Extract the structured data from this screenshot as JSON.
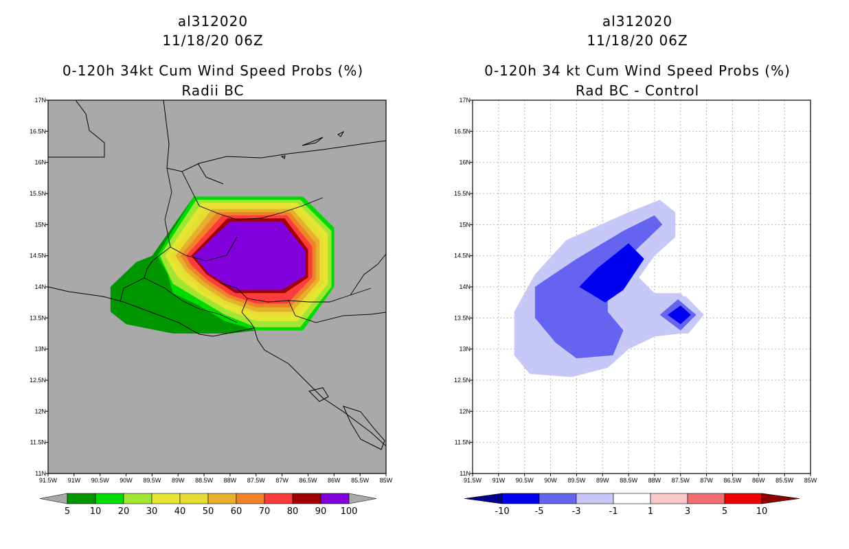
{
  "panels": [
    {
      "id": "left",
      "storm": "al312020",
      "datetime": "11/18/20 06Z",
      "title": "0-120h 34kt Cum Wind Speed Probs (%)",
      "subtitle": "Radii BC",
      "background": "#a9a9a9",
      "dotted_grid": false
    },
    {
      "id": "right",
      "storm": "al312020",
      "datetime": "11/18/20 06Z",
      "title": "0-120h 34 kt Cum Wind Speed Probs (%)",
      "subtitle": "Rad BC - Control",
      "background": "#ffffff",
      "dotted_grid": true
    }
  ],
  "chart_data": [
    {
      "type": "filled-contour-map",
      "panel": "left",
      "lon_range": [
        -91.5,
        -85.0
      ],
      "lat_range": [
        11.0,
        17.0
      ],
      "x_tick_labels": [
        "91.5W",
        "91W",
        "90.5W",
        "90W",
        "89.5W",
        "89W",
        "88.5W",
        "88W",
        "87.5W",
        "87W",
        "86.5W",
        "86W",
        "85.5W",
        "85W"
      ],
      "y_tick_labels": [
        "11N",
        "11.5N",
        "12N",
        "12.5N",
        "13N",
        "13.5N",
        "14N",
        "14.5N",
        "15N",
        "15.5N",
        "16N",
        "16.5N",
        "17N"
      ],
      "colorbar": {
        "labels": [
          "5",
          "10",
          "20",
          "30",
          "40",
          "50",
          "60",
          "70",
          "80",
          "90",
          "100"
        ],
        "colors": [
          "#009600",
          "#00dc00",
          "#a0e632",
          "#e6e632",
          "#e6dc32",
          "#e6af2d",
          "#f08228",
          "#fa3c3c",
          "#a00000",
          "#8200dc"
        ]
      },
      "contours": [
        {
          "level": 5,
          "color": "#009600",
          "polygon": [
            [
              -88.7,
              15.45
            ],
            [
              -86.6,
              15.45
            ],
            [
              -86.0,
              14.95
            ],
            [
              -86.0,
              14.0
            ],
            [
              -86.6,
              13.3
            ],
            [
              -87.5,
              13.3
            ],
            [
              -88.0,
              13.25
            ],
            [
              -89.1,
              13.25
            ],
            [
              -90.0,
              13.4
            ],
            [
              -90.3,
              13.6
            ],
            [
              -90.3,
              14.0
            ],
            [
              -89.8,
              14.4
            ],
            [
              -89.5,
              14.5
            ]
          ]
        },
        {
          "level": 10,
          "color": "#00dc00",
          "polygon": [
            [
              -88.7,
              15.45
            ],
            [
              -86.6,
              15.45
            ],
            [
              -86.0,
              14.95
            ],
            [
              -86.0,
              14.0
            ],
            [
              -86.6,
              13.3
            ],
            [
              -87.5,
              13.3
            ],
            [
              -88.1,
              13.45
            ],
            [
              -88.6,
              13.7
            ],
            [
              -89.1,
              13.9
            ],
            [
              -89.2,
              14.2
            ],
            [
              -89.4,
              14.5
            ]
          ]
        },
        {
          "level": 20,
          "color": "#a0e632",
          "polygon": [
            [
              -88.65,
              15.4
            ],
            [
              -86.65,
              15.4
            ],
            [
              -86.05,
              14.9
            ],
            [
              -86.05,
              14.0
            ],
            [
              -86.65,
              13.35
            ],
            [
              -87.5,
              13.35
            ],
            [
              -88.1,
              13.55
            ],
            [
              -88.6,
              13.8
            ],
            [
              -89.1,
              14.05
            ],
            [
              -89.35,
              14.5
            ]
          ]
        },
        {
          "level": 30,
          "color": "#e6e632",
          "polygon": [
            [
              -88.55,
              15.35
            ],
            [
              -86.7,
              15.35
            ],
            [
              -86.12,
              14.85
            ],
            [
              -86.12,
              14.05
            ],
            [
              -86.7,
              13.45
            ],
            [
              -87.5,
              13.45
            ],
            [
              -88.1,
              13.65
            ],
            [
              -88.6,
              13.9
            ],
            [
              -89.0,
              14.15
            ],
            [
              -89.25,
              14.5
            ]
          ]
        },
        {
          "level": 40,
          "color": "#e6dc32",
          "polygon": [
            [
              -88.45,
              15.3
            ],
            [
              -86.75,
              15.3
            ],
            [
              -86.2,
              14.8
            ],
            [
              -86.2,
              14.08
            ],
            [
              -86.75,
              13.55
            ],
            [
              -87.5,
              13.55
            ],
            [
              -88.1,
              13.72
            ],
            [
              -88.6,
              13.97
            ],
            [
              -88.9,
              14.2
            ],
            [
              -89.15,
              14.5
            ]
          ]
        },
        {
          "level": 50,
          "color": "#e6af2d",
          "polygon": [
            [
              -88.35,
              15.25
            ],
            [
              -86.8,
              15.25
            ],
            [
              -86.28,
              14.75
            ],
            [
              -86.28,
              14.1
            ],
            [
              -86.8,
              13.6
            ],
            [
              -87.5,
              13.6
            ],
            [
              -88.1,
              13.78
            ],
            [
              -88.55,
              14.03
            ],
            [
              -88.85,
              14.25
            ],
            [
              -89.05,
              14.5
            ]
          ]
        },
        {
          "level": 60,
          "color": "#f08228",
          "polygon": [
            [
              -88.25,
              15.2
            ],
            [
              -86.85,
              15.2
            ],
            [
              -86.35,
              14.7
            ],
            [
              -86.35,
              14.12
            ],
            [
              -86.85,
              13.67
            ],
            [
              -87.5,
              13.67
            ],
            [
              -88.05,
              13.83
            ],
            [
              -88.5,
              14.08
            ],
            [
              -88.8,
              14.3
            ],
            [
              -88.95,
              14.5
            ]
          ]
        },
        {
          "level": 70,
          "color": "#fa3c3c",
          "polygon": [
            [
              -88.15,
              15.15
            ],
            [
              -86.9,
              15.15
            ],
            [
              -86.42,
              14.65
            ],
            [
              -86.42,
              14.15
            ],
            [
              -86.9,
              13.73
            ],
            [
              -87.5,
              13.73
            ],
            [
              -88.0,
              13.87
            ],
            [
              -88.45,
              14.12
            ],
            [
              -88.75,
              14.35
            ],
            [
              -88.85,
              14.5
            ]
          ]
        },
        {
          "level": 80,
          "color": "#a00000",
          "polygon": [
            [
              -88.05,
              15.1
            ],
            [
              -86.95,
              15.1
            ],
            [
              -86.5,
              14.6
            ],
            [
              -86.5,
              14.15
            ],
            [
              -86.95,
              13.9
            ],
            [
              -87.9,
              13.9
            ],
            [
              -88.45,
              14.2
            ],
            [
              -88.75,
              14.5
            ]
          ]
        },
        {
          "level": 90,
          "color": "#8200dc",
          "polygon": [
            [
              -88.0,
              15.05
            ],
            [
              -87.0,
              15.05
            ],
            [
              -86.55,
              14.58
            ],
            [
              -86.55,
              14.18
            ],
            [
              -87.0,
              13.95
            ],
            [
              -87.9,
              13.95
            ],
            [
              -88.42,
              14.22
            ],
            [
              -88.7,
              14.5
            ]
          ]
        }
      ]
    },
    {
      "type": "filled-contour-map",
      "panel": "right",
      "lon_range": [
        -91.5,
        -85.0
      ],
      "lat_range": [
        11.0,
        17.0
      ],
      "x_tick_labels": [
        "91.5W",
        "91W",
        "90.5W",
        "90W",
        "89.5W",
        "89W",
        "88.5W",
        "88W",
        "87.5W",
        "87W",
        "86.5W",
        "86W",
        "85.5W",
        "85W"
      ],
      "y_tick_labels": [
        "11N",
        "11.5N",
        "12N",
        "12.5N",
        "13N",
        "13.5N",
        "14N",
        "14.5N",
        "15N",
        "15.5N",
        "16N",
        "16.5N",
        "17N"
      ],
      "colorbar": {
        "labels": [
          "-10",
          "-5",
          "-3",
          "-1",
          "1",
          "3",
          "5",
          "10"
        ],
        "colors": [
          "#00008c",
          "#0000f0",
          "#6464f0",
          "#c8c8f8",
          "#ffffff",
          "#fac8c8",
          "#f06e6e",
          "#f00000",
          "#8c0000"
        ]
      },
      "contours": [
        {
          "level": -1,
          "color": "#c8c8f8",
          "polygon": [
            [
              -89.7,
              14.75
            ],
            [
              -88.5,
              15.2
            ],
            [
              -87.9,
              15.4
            ],
            [
              -87.6,
              15.2
            ],
            [
              -87.6,
              14.8
            ],
            [
              -88.0,
              14.5
            ],
            [
              -88.3,
              14.15
            ],
            [
              -88.0,
              13.9
            ],
            [
              -87.5,
              13.9
            ],
            [
              -87.1,
              13.5
            ],
            [
              -87.5,
              13.25
            ],
            [
              -88.0,
              13.2
            ],
            [
              -88.5,
              13.0
            ],
            [
              -88.9,
              12.7
            ],
            [
              -89.6,
              12.55
            ],
            [
              -90.4,
              12.6
            ],
            [
              -90.7,
              12.9
            ],
            [
              -90.7,
              13.6
            ],
            [
              -90.3,
              14.2
            ]
          ]
        },
        {
          "level": -3,
          "color": "#6464f0",
          "polygon": [
            [
              -89.5,
              14.45
            ],
            [
              -88.6,
              14.9
            ],
            [
              -88.0,
              15.15
            ],
            [
              -87.85,
              15.0
            ],
            [
              -88.35,
              14.6
            ],
            [
              -88.9,
              14.1
            ],
            [
              -88.9,
              13.6
            ],
            [
              -88.6,
              13.3
            ],
            [
              -88.8,
              12.9
            ],
            [
              -89.5,
              12.85
            ],
            [
              -89.9,
              13.1
            ],
            [
              -90.3,
              13.5
            ],
            [
              -90.3,
              14.0
            ]
          ]
        },
        {
          "level": -5,
          "color": "#0000f0",
          "polygon": [
            [
              -88.5,
              14.7
            ],
            [
              -88.2,
              14.45
            ],
            [
              -88.6,
              13.95
            ],
            [
              -88.95,
              13.75
            ],
            [
              -89.45,
              14.0
            ],
            [
              -89.1,
              14.3
            ]
          ]
        },
        {
          "level": -1,
          "color": "#c8c8f8",
          "polygon": [
            [
              -87.6,
              13.85
            ],
            [
              -87.4,
              13.85
            ],
            [
              -87.05,
              13.55
            ],
            [
              -87.35,
              13.25
            ],
            [
              -87.7,
              13.25
            ],
            [
              -88.0,
              13.55
            ]
          ]
        },
        {
          "level": -3,
          "color": "#6464f0",
          "polygon": [
            [
              -87.55,
              13.8
            ],
            [
              -87.2,
              13.55
            ],
            [
              -87.5,
              13.3
            ],
            [
              -87.9,
              13.55
            ]
          ]
        },
        {
          "level": -5,
          "color": "#0000f0",
          "polygon": [
            [
              -87.5,
              13.7
            ],
            [
              -87.3,
              13.55
            ],
            [
              -87.5,
              13.4
            ],
            [
              -87.75,
              13.55
            ]
          ]
        }
      ]
    }
  ]
}
